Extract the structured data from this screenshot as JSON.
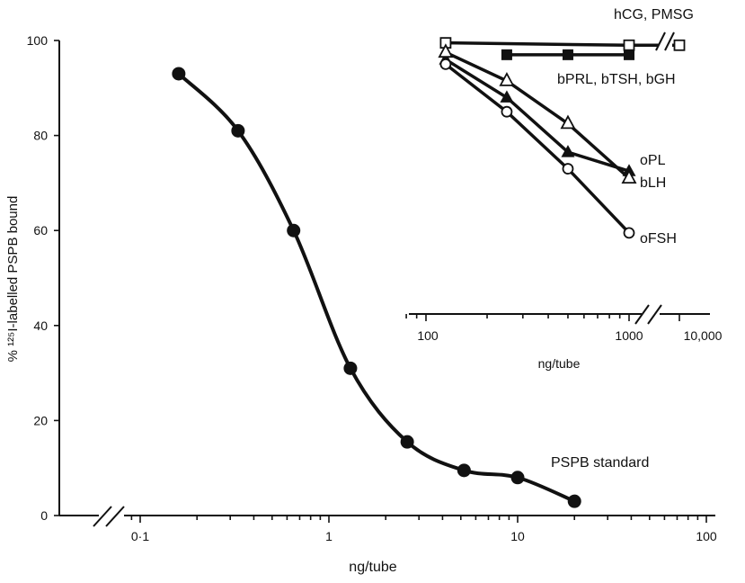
{
  "chart_data": [
    {
      "type": "scatter",
      "xlabel": "ng/tube",
      "ylabel": "% ¹²⁵I-labelled PSPB bound",
      "x_scale": "log",
      "xlim": [
        0.03,
        120
      ],
      "ylim": [
        0,
        100
      ],
      "y_ticks": [
        "0",
        "20",
        "40",
        "60",
        "80",
        "100"
      ],
      "x_ticks": [
        "0·1",
        "1",
        "10",
        "100"
      ],
      "series": [
        {
          "name": "PSPB standard",
          "marker": "filled-circle",
          "x": [
            0.16,
            0.33,
            0.65,
            1.3,
            2.6,
            5.2,
            10,
            20
          ],
          "y": [
            93,
            81,
            60,
            31,
            15.5,
            9.5,
            8,
            3
          ]
        }
      ]
    },
    {
      "type": "line",
      "xlabel": "ng/tube",
      "x_scale": "log",
      "x_ticks": [
        "100",
        "1000",
        "10,000"
      ],
      "series": [
        {
          "name": "hCG, PMSG",
          "marker": "open-square",
          "x": [
            125,
            1000,
            10000
          ],
          "y": [
            99.5,
            99,
            99
          ]
        },
        {
          "name": "bPRL, bTSH, bGH",
          "marker": "filled-square",
          "x": [
            250,
            500,
            1000
          ],
          "y": [
            97,
            97,
            97
          ]
        },
        {
          "name": "oPL",
          "marker": "filled-triangle",
          "x": [
            125,
            250,
            500,
            1000
          ],
          "y": [
            96,
            88,
            76.5,
            72.5
          ]
        },
        {
          "name": "bLH",
          "marker": "open-triangle",
          "x": [
            125,
            250,
            500,
            1000
          ],
          "y": [
            97.5,
            91.5,
            82.5,
            71
          ]
        },
        {
          "name": "oFSH",
          "marker": "open-circle",
          "x": [
            125,
            250,
            500,
            1000
          ],
          "y": [
            95,
            85,
            73,
            59.5
          ]
        }
      ]
    }
  ]
}
